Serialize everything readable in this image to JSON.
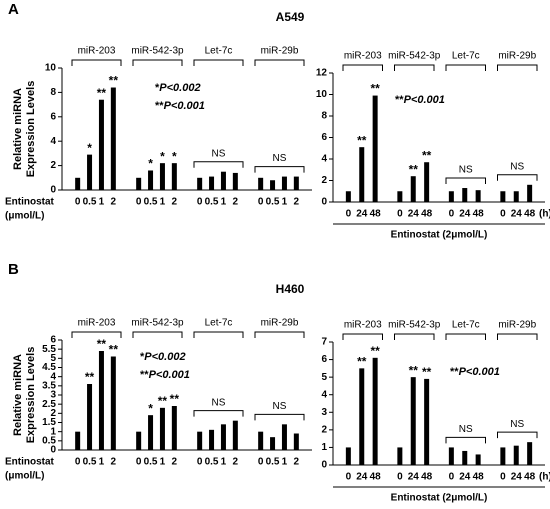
{
  "chart_data": [
    {
      "type": "bar",
      "panel": "A",
      "title": "A549",
      "ylabel": [
        "Relative miRNA",
        "Expression Levels"
      ],
      "xlabel": [
        "Entinostat",
        "(μmol/L)"
      ],
      "ylim": [
        0,
        10
      ],
      "yticks": [
        0,
        2,
        4,
        6,
        8,
        10
      ],
      "color": "#000000",
      "groups": [
        {
          "name": "miR-203",
          "categories": [
            "0",
            "0.5",
            "1",
            "2"
          ],
          "values": [
            1,
            2.9,
            7.4,
            8.4
          ],
          "sig": [
            null,
            "*",
            "**",
            "**"
          ]
        },
        {
          "name": "miR-542-3p",
          "categories": [
            "0",
            "0.5",
            "1",
            "2"
          ],
          "values": [
            1,
            1.6,
            2.2,
            2.2
          ],
          "sig": [
            null,
            "*",
            "*",
            "*"
          ]
        },
        {
          "name": "Let-7c",
          "categories": [
            "0",
            "0.5",
            "1",
            "2"
          ],
          "values": [
            1,
            1.1,
            1.5,
            1.4
          ],
          "bracket_label": "NS"
        },
        {
          "name": "miR-29b",
          "categories": [
            "0",
            "0.5",
            "1",
            "2"
          ],
          "values": [
            1,
            0.8,
            1.1,
            1.1
          ],
          "bracket_label": "NS"
        }
      ],
      "notes": [
        {
          "stars": "*",
          "p": "P<0.002"
        },
        {
          "stars": "**",
          "p": "P<0.001"
        }
      ]
    },
    {
      "type": "bar",
      "xlabel": [
        "Entinostat (2μmol/L)"
      ],
      "x_unit": "(h)",
      "ylim": [
        0,
        12
      ],
      "yticks": [
        0,
        2,
        4,
        6,
        8,
        10,
        12
      ],
      "color": "#000000",
      "groups": [
        {
          "name": "miR-203",
          "categories": [
            "0",
            "24",
            "48"
          ],
          "values": [
            1,
            5.1,
            9.9
          ],
          "sig": [
            null,
            "**",
            "**"
          ]
        },
        {
          "name": "miR-542-3p",
          "categories": [
            "0",
            "24",
            "48"
          ],
          "values": [
            1,
            2.4,
            3.7
          ],
          "sig": [
            null,
            "**",
            "**"
          ]
        },
        {
          "name": "Let-7c",
          "categories": [
            "0",
            "24",
            "48"
          ],
          "values": [
            1,
            1.3,
            1.1
          ],
          "bracket_label": "NS"
        },
        {
          "name": "miR-29b",
          "categories": [
            "0",
            "24",
            "48"
          ],
          "values": [
            1,
            1,
            1.6
          ],
          "bracket_label": "NS"
        }
      ],
      "notes": [
        {
          "stars": "**",
          "p": "P<0.001"
        }
      ]
    },
    {
      "type": "bar",
      "panel": "B",
      "title": "H460",
      "ylabel": [
        "Relative miRNA",
        "Expression Levels"
      ],
      "xlabel": [
        "Entinostat",
        "(μmol/L)"
      ],
      "ylim": [
        0,
        6
      ],
      "yticks": [
        0,
        0.5,
        1,
        1.5,
        2,
        2.5,
        3,
        3.5,
        4,
        4.5,
        5,
        5.5,
        6
      ],
      "color": "#000000",
      "groups": [
        {
          "name": "miR-203",
          "categories": [
            "0",
            "0.5",
            "1",
            "2"
          ],
          "values": [
            1,
            3.6,
            5.4,
            5.1
          ],
          "sig": [
            null,
            "**",
            "**",
            "**"
          ]
        },
        {
          "name": "miR-542-3p",
          "categories": [
            "0",
            "0.5",
            "1",
            "2"
          ],
          "values": [
            1,
            1.9,
            2.3,
            2.4
          ],
          "sig": [
            null,
            "*",
            "**",
            "**"
          ]
        },
        {
          "name": "Let-7c",
          "categories": [
            "0",
            "0.5",
            "1",
            "2"
          ],
          "values": [
            1,
            1.1,
            1.4,
            1.6
          ],
          "bracket_label": "NS"
        },
        {
          "name": "miR-29b",
          "categories": [
            "0",
            "0.5",
            "1",
            "2"
          ],
          "values": [
            1,
            0.7,
            1.4,
            0.9
          ],
          "bracket_label": "NS"
        }
      ],
      "notes": [
        {
          "stars": "*",
          "p": "P<0.002"
        },
        {
          "stars": "**",
          "p": "P<0.001"
        }
      ]
    },
    {
      "type": "bar",
      "xlabel": [
        "Entinostat (2μmol/L)"
      ],
      "x_unit": "(h)",
      "ylim": [
        0,
        7
      ],
      "yticks": [
        0,
        1,
        2,
        3,
        4,
        5,
        6,
        7
      ],
      "color": "#000000",
      "groups": [
        {
          "name": "miR-203",
          "categories": [
            "0",
            "24",
            "48"
          ],
          "values": [
            1,
            5.5,
            6.1
          ],
          "sig": [
            null,
            "**",
            "**"
          ]
        },
        {
          "name": "miR-542-3p",
          "categories": [
            "0",
            "24",
            "48"
          ],
          "values": [
            1,
            5.0,
            4.9
          ],
          "sig": [
            null,
            "**",
            "**"
          ]
        },
        {
          "name": "Let-7c",
          "categories": [
            "0",
            "24",
            "48"
          ],
          "values": [
            1,
            0.8,
            0.6
          ],
          "bracket_label": "NS"
        },
        {
          "name": "miR-29b",
          "categories": [
            "0",
            "24",
            "48"
          ],
          "values": [
            1,
            1.1,
            1.3
          ],
          "bracket_label": "NS"
        }
      ],
      "notes": [
        {
          "stars": "**",
          "p": "P<0.001"
        }
      ]
    }
  ]
}
